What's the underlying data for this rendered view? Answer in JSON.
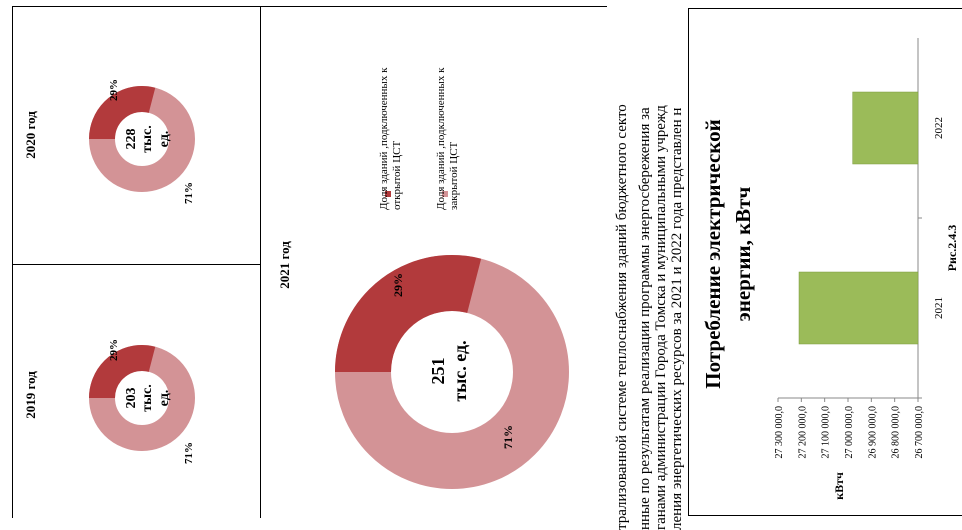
{
  "donuts": [
    {
      "id": "2019",
      "title": "2019 год",
      "center_value": "203",
      "center_unit_line1": "тыс.",
      "center_unit_line2": "ед.",
      "open_pct": "29%",
      "closed_pct": "71%",
      "open_fraction": 0.29
    },
    {
      "id": "2020",
      "title": "2020 год",
      "center_value": "228",
      "center_unit_line1": "тыс.",
      "center_unit_line2": "ед.",
      "open_pct": "29%",
      "closed_pct": "71%",
      "open_fraction": 0.29
    },
    {
      "id": "2021",
      "title": "2021 год",
      "center_value": "251",
      "center_unit_line1": "тыс. ед.",
      "open_pct": "29%",
      "closed_pct": "71%",
      "open_fraction": 0.29
    }
  ],
  "legend": {
    "open_label": "Доля зданий ,подключенных к открытой ЦСТ",
    "closed_label": "Доля зданий ,подключенных к закрытой ЦСТ"
  },
  "colors": {
    "open": "#b23a3c",
    "closed": "#d39396",
    "bar": "#9bbb59"
  },
  "text_lines": [
    "трализованной системе теплоснабжения зданий бюджетного секто",
    "нные по результатам реализации программы энергосбережения за",
    "ганами администрации Города Томска и муниципальными учрежд",
    "ления энергетических ресурсов за 2021 и 2022 года представлен н"
  ],
  "chart_data": {
    "type": "bar",
    "title": "Потребление электрической энергии, кВтч",
    "categories": [
      "2021",
      "2022"
    ],
    "values": [
      27210000,
      26980000
    ],
    "ylabel": "кВтч",
    "ylim": [
      26700000,
      27300000
    ],
    "yticks": [
      "26 700 000,0",
      "26 800 000,0",
      "26 900 000,0",
      "27 000 000,0",
      "27 100 000,0",
      "27 200 000,0",
      "27 300 000,0"
    ],
    "ytick_values": [
      26700000,
      26800000,
      26900000,
      27000000,
      27100000,
      27200000,
      27300000
    ],
    "grid": false
  },
  "caption": "Рис.2.4.3"
}
